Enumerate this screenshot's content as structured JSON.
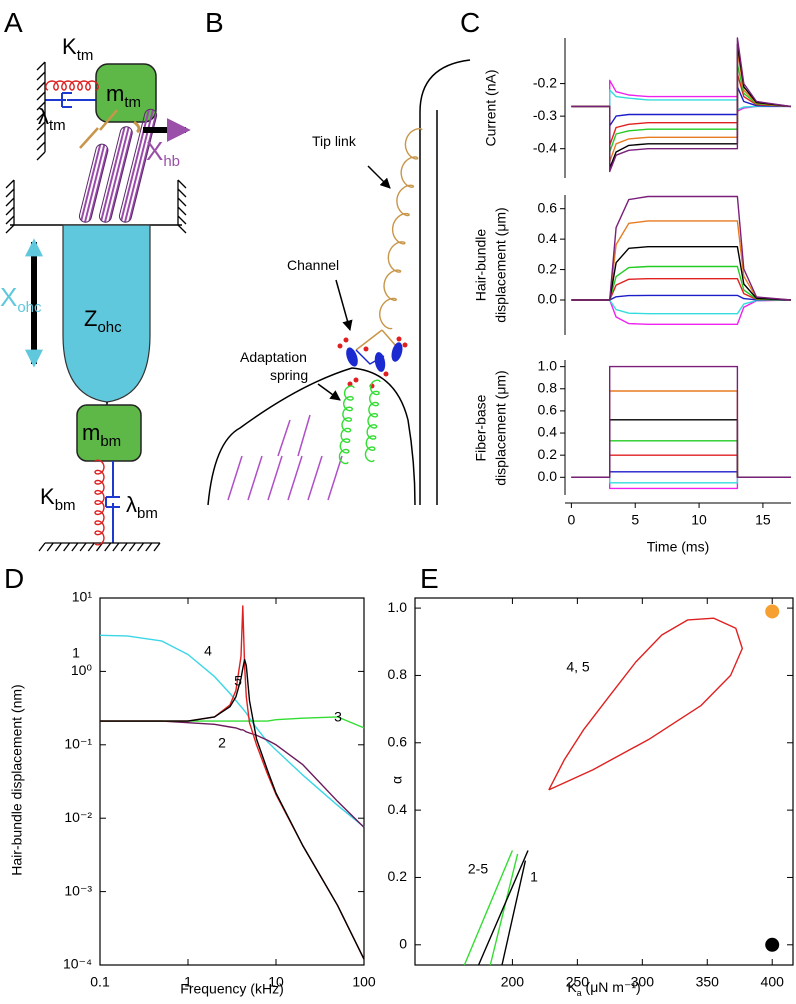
{
  "panel_labels": [
    "A",
    "B",
    "C",
    "D",
    "E"
  ],
  "diagram_a": {
    "k_tm": [
      "K",
      "tm"
    ],
    "m_tm": [
      "m",
      "tm"
    ],
    "lambda_tm": [
      "λ",
      "tm"
    ],
    "x_hb": [
      "X",
      "hb"
    ],
    "x_ohc": [
      "X",
      "ohc"
    ],
    "z_ohc": [
      "Z",
      "ohc"
    ],
    "m_bm": [
      "m",
      "bm"
    ],
    "k_bm": [
      "K",
      "bm"
    ],
    "lambda_bm": [
      "λ",
      "bm"
    ]
  },
  "diagram_b": {
    "tip_link": "Tip link",
    "channel": "Channel",
    "adaptation_spring": [
      "Adaptation",
      "spring"
    ]
  },
  "chart_data": [
    {
      "type": "line",
      "y_label": "Current (nA)",
      "xlim": [
        -0.5,
        17.2
      ],
      "ylim": [
        -0.49,
        -0.06
      ],
      "yticks": [
        -0.4,
        -0.3,
        -0.2
      ],
      "x": [
        0,
        3,
        3,
        3.5,
        4.5,
        6,
        9,
        13,
        13,
        13.5,
        14.5,
        17.2
      ],
      "series": [
        {
          "color": "#ee22ee",
          "values": [
            -0.27,
            -0.27,
            -0.19,
            -0.225,
            -0.235,
            -0.24,
            -0.24,
            -0.24,
            -0.285,
            -0.275,
            -0.27,
            -0.27
          ]
        },
        {
          "color": "#33dddd",
          "values": [
            -0.27,
            -0.27,
            -0.22,
            -0.24,
            -0.245,
            -0.25,
            -0.25,
            -0.25,
            -0.28,
            -0.272,
            -0.27,
            -0.27
          ]
        },
        {
          "color": "#1c1cc8",
          "values": [
            -0.27,
            -0.27,
            -0.33,
            -0.3,
            -0.295,
            -0.295,
            -0.295,
            -0.295,
            -0.21,
            -0.255,
            -0.268,
            -0.27
          ]
        },
        {
          "color": "#e02020",
          "values": [
            -0.27,
            -0.27,
            -0.39,
            -0.335,
            -0.325,
            -0.32,
            -0.32,
            -0.32,
            -0.17,
            -0.24,
            -0.265,
            -0.27
          ]
        },
        {
          "color": "#22cc22",
          "values": [
            -0.27,
            -0.27,
            -0.41,
            -0.355,
            -0.345,
            -0.34,
            -0.34,
            -0.34,
            -0.14,
            -0.23,
            -0.262,
            -0.27
          ]
        },
        {
          "color": "#e87a20",
          "values": [
            -0.27,
            -0.27,
            -0.44,
            -0.385,
            -0.37,
            -0.365,
            -0.365,
            -0.365,
            -0.1,
            -0.22,
            -0.26,
            -0.27
          ]
        },
        {
          "color": "#000000",
          "values": [
            -0.27,
            -0.27,
            -0.46,
            -0.41,
            -0.39,
            -0.385,
            -0.385,
            -0.385,
            -0.08,
            -0.21,
            -0.258,
            -0.27
          ]
        },
        {
          "color": "#7a1f7a",
          "values": [
            -0.27,
            -0.27,
            -0.47,
            -0.42,
            -0.405,
            -0.4,
            -0.4,
            -0.4,
            -0.06,
            -0.2,
            -0.255,
            -0.27
          ]
        }
      ]
    },
    {
      "type": "line",
      "y_label": [
        "Hair-bundle",
        "displacement (μm)"
      ],
      "xlim": [
        -0.5,
        17.2
      ],
      "ylim": [
        -0.23,
        0.69
      ],
      "yticks": [
        {
          "value": 0,
          "label": "0.0"
        },
        0.2,
        0.4,
        0.6
      ],
      "x": [
        0,
        3,
        3,
        3.5,
        4.5,
        6,
        9,
        13,
        13,
        13.5,
        14.5,
        17.2
      ],
      "series": [
        {
          "color": "#ee22ee",
          "values": [
            0,
            0,
            0,
            -0.112,
            -0.155,
            -0.16,
            -0.16,
            -0.16,
            -0.16,
            -0.048,
            -0.005,
            0
          ]
        },
        {
          "color": "#33dddd",
          "values": [
            0,
            0,
            0,
            -0.063,
            -0.087,
            -0.09,
            -0.09,
            -0.09,
            -0.09,
            -0.027,
            -0.003,
            0
          ]
        },
        {
          "color": "#1c1cc8",
          "values": [
            0,
            0,
            0,
            0.021,
            0.029,
            0.03,
            0.03,
            0.03,
            0.03,
            0.009,
            0.001,
            0
          ]
        },
        {
          "color": "#e02020",
          "values": [
            0,
            0,
            0,
            0.098,
            0.136,
            0.14,
            0.14,
            0.14,
            0.14,
            0.042,
            0.004,
            0
          ]
        },
        {
          "color": "#22cc22",
          "values": [
            0,
            0,
            0,
            0.154,
            0.213,
            0.22,
            0.22,
            0.22,
            0.22,
            0.066,
            0.007,
            0
          ]
        },
        {
          "color": "#e87a20",
          "values": [
            0,
            0,
            0,
            0.364,
            0.504,
            0.52,
            0.52,
            0.52,
            0.52,
            0.156,
            0.016,
            0
          ]
        },
        {
          "color": "#000000",
          "values": [
            0,
            0,
            0,
            0.245,
            0.34,
            0.35,
            0.35,
            0.35,
            0.35,
            0.105,
            0.011,
            0
          ]
        },
        {
          "color": "#7a1f7a",
          "values": [
            0,
            0,
            0,
            0.476,
            0.66,
            0.68,
            0.68,
            0.68,
            0.68,
            0.204,
            0.02,
            0
          ]
        }
      ]
    },
    {
      "type": "line",
      "y_label": [
        "Fiber-base",
        "displacement (μm)"
      ],
      "x_label": "Time (ms)",
      "xlim": [
        -0.5,
        17.2
      ],
      "ylim": [
        -0.16,
        1.06
      ],
      "xticks": [
        0,
        5,
        10,
        15
      ],
      "yticks": [
        {
          "value": 0,
          "label": "0.0"
        },
        0.2,
        0.4,
        0.6,
        0.8,
        {
          "value": 1,
          "label": "1.0"
        }
      ],
      "x": [
        0,
        3,
        3,
        13,
        13,
        17.2
      ],
      "series": [
        {
          "color": "#ee22ee",
          "values": [
            0,
            0,
            -0.1,
            -0.1,
            0,
            0
          ]
        },
        {
          "color": "#33dddd",
          "values": [
            0,
            0,
            -0.05,
            -0.05,
            0,
            0
          ]
        },
        {
          "color": "#1c1cc8",
          "values": [
            0,
            0,
            0.05,
            0.05,
            0,
            0
          ]
        },
        {
          "color": "#e02020",
          "values": [
            0,
            0,
            0.2,
            0.2,
            0,
            0
          ]
        },
        {
          "color": "#22cc22",
          "values": [
            0,
            0,
            0.33,
            0.33,
            0,
            0
          ]
        },
        {
          "color": "#e87a20",
          "values": [
            0,
            0,
            0.78,
            0.78,
            0,
            0
          ]
        },
        {
          "color": "#000000",
          "values": [
            0,
            0,
            0.52,
            0.52,
            0,
            0
          ]
        },
        {
          "color": "#7a1f7a",
          "values": [
            0,
            0,
            1,
            1,
            0,
            0
          ]
        }
      ]
    },
    {
      "type": "line",
      "x_label": "Frequency (kHz)",
      "y_label": "Hair-bundle displacement (nm)",
      "log_x": true,
      "log_y": true,
      "frame": true,
      "xlim": [
        0.1,
        100
      ],
      "ylim": [
        0.0001,
        10
      ],
      "xticks": [
        0.1,
        1,
        10,
        100
      ],
      "yticks": [
        {
          "value": 10,
          "label": "10¹"
        },
        {
          "value": 1,
          "label": "10⁰"
        },
        {
          "value": 0.1,
          "label": "10⁻¹"
        },
        {
          "value": 0.01,
          "label": "10⁻²"
        },
        {
          "value": 0.001,
          "label": "10⁻³"
        },
        {
          "value": 0.0001,
          "label": "10⁻⁴"
        }
      ],
      "x": [
        0.1,
        0.2,
        0.5,
        1,
        2,
        3,
        3.5,
        4,
        4.2,
        4.4,
        4.6,
        5,
        6,
        8,
        10,
        20,
        50,
        100
      ],
      "series": [
        {
          "name": "1",
          "color": "#3ad6e6",
          "values": [
            3.1,
            3.05,
            2.6,
            1.7,
            0.85,
            0.5,
            0.4,
            0.33,
            0.31,
            0.29,
            0.27,
            0.23,
            0.17,
            0.11,
            0.085,
            0.039,
            0.015,
            0.0076
          ]
        },
        {
          "name": "2",
          "color": "#6a1a5a",
          "values": [
            0.21,
            0.21,
            0.21,
            0.2,
            0.19,
            0.175,
            0.17,
            0.16,
            0.16,
            0.155,
            0.15,
            0.145,
            0.135,
            0.115,
            0.1,
            0.054,
            0.017,
            0.0075
          ]
        },
        {
          "name": "3",
          "color": "#33dd33",
          "values": [
            0.21,
            0.21,
            0.21,
            0.21,
            0.21,
            0.21,
            0.21,
            0.21,
            0.21,
            0.21,
            0.21,
            0.21,
            0.21,
            0.21,
            0.22,
            0.23,
            0.24,
            0.17
          ]
        },
        {
          "name": "4",
          "color": "#e02020",
          "values": [
            0.21,
            0.21,
            0.21,
            0.21,
            0.24,
            0.35,
            0.55,
            1.6,
            7.8,
            1.2,
            0.45,
            0.2,
            0.1,
            0.04,
            0.021,
            0.0043,
            0.00065,
            0.00012
          ]
        },
        {
          "name": "5",
          "color": "#000000",
          "values": [
            0.21,
            0.21,
            0.21,
            0.21,
            0.24,
            0.33,
            0.45,
            0.8,
            1.1,
            1.45,
            1.2,
            0.4,
            0.12,
            0.045,
            0.022,
            0.0043,
            0.00065,
            0.00012
          ]
        }
      ]
    },
    {
      "type": "line",
      "x_label": {
        "text": "K",
        "sub": "a",
        "after": " (μN m⁻¹)"
      },
      "y_label": "α",
      "frame": true,
      "xlim": [
        125,
        416
      ],
      "ylim": [
        -0.06,
        1.03
      ],
      "xticks": [
        200,
        250,
        300,
        350,
        400
      ],
      "yticks": [
        0,
        0.2,
        0.4,
        0.6,
        0.8,
        {
          "value": 1,
          "label": "1.0"
        }
      ],
      "series": [
        {
          "name": "4, 5",
          "color": "#e02020",
          "x": [
            228,
            240,
            255,
            275,
            295,
            315,
            335,
            355,
            372,
            377,
            368,
            345,
            305,
            262,
            228
          ],
          "values": [
            0.46,
            0.55,
            0.64,
            0.74,
            0.84,
            0.92,
            0.965,
            0.97,
            0.94,
            0.88,
            0.8,
            0.71,
            0.61,
            0.52,
            0.46
          ]
        },
        {
          "name": "2-5",
          "color": "#33dd33",
          "x": [
            163,
            200,
            null,
            183,
            204
          ],
          "values": [
            -0.06,
            0.28,
            null,
            -0.06,
            0.27
          ]
        },
        {
          "name": "1",
          "color": "#000000",
          "x": [
            174,
            212,
            null,
            192,
            210
          ],
          "values": [
            -0.06,
            0.28,
            null,
            -0.06,
            0.25
          ]
        },
        {
          "color": "#f5a030",
          "marker": "dot",
          "x": [
            400
          ],
          "values": [
            0.99
          ]
        },
        {
          "color": "#000000",
          "marker": "dot",
          "x": [
            400
          ],
          "values": [
            0
          ]
        }
      ]
    }
  ]
}
